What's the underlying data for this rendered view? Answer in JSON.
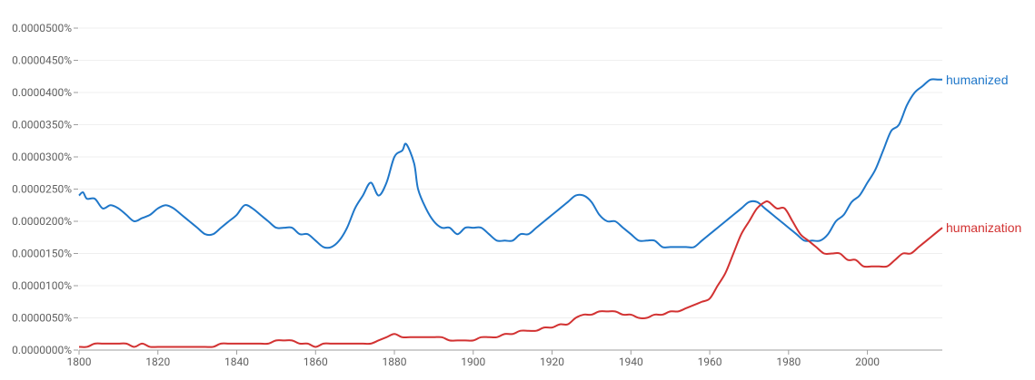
{
  "chart_data": {
    "type": "line",
    "title": "",
    "xlabel": "",
    "ylabel": "",
    "xlim": [
      1800,
      2019
    ],
    "ylim": [
      0,
      5e-06
    ],
    "x_ticks": [
      "1800",
      "1820",
      "1840",
      "1860",
      "1880",
      "1900",
      "1920",
      "1940",
      "1960",
      "1980",
      "2000"
    ],
    "y_ticks": [
      "0.0000000%",
      "0.0000050%",
      "0.0000100%",
      "0.0000150%",
      "0.0000200%",
      "0.0000250%",
      "0.0000300%",
      "0.0000350%",
      "0.0000400%",
      "0.0000450%",
      "0.0000500%"
    ],
    "grid": true,
    "legend": "inline-right",
    "series": [
      {
        "name": "humanized",
        "color": "#1f77c9",
        "points": [
          [
            1800,
            2.4e-06
          ],
          [
            1801,
            2.45e-06
          ],
          [
            1802,
            2.35e-06
          ],
          [
            1804,
            2.35e-06
          ],
          [
            1806,
            2.2e-06
          ],
          [
            1808,
            2.25e-06
          ],
          [
            1810,
            2.2e-06
          ],
          [
            1812,
            2.1e-06
          ],
          [
            1814,
            2e-06
          ],
          [
            1816,
            2.05e-06
          ],
          [
            1818,
            2.1e-06
          ],
          [
            1820,
            2.2e-06
          ],
          [
            1822,
            2.25e-06
          ],
          [
            1824,
            2.2e-06
          ],
          [
            1826,
            2.1e-06
          ],
          [
            1828,
            2e-06
          ],
          [
            1830,
            1.9e-06
          ],
          [
            1832,
            1.8e-06
          ],
          [
            1834,
            1.8e-06
          ],
          [
            1836,
            1.9e-06
          ],
          [
            1838,
            2e-06
          ],
          [
            1840,
            2.1e-06
          ],
          [
            1842,
            2.25e-06
          ],
          [
            1844,
            2.2e-06
          ],
          [
            1846,
            2.1e-06
          ],
          [
            1848,
            2e-06
          ],
          [
            1850,
            1.9e-06
          ],
          [
            1852,
            1.9e-06
          ],
          [
            1854,
            1.9e-06
          ],
          [
            1856,
            1.8e-06
          ],
          [
            1858,
            1.8e-06
          ],
          [
            1860,
            1.7e-06
          ],
          [
            1862,
            1.6e-06
          ],
          [
            1864,
            1.6e-06
          ],
          [
            1866,
            1.7e-06
          ],
          [
            1868,
            1.9e-06
          ],
          [
            1870,
            2.2e-06
          ],
          [
            1872,
            2.4e-06
          ],
          [
            1874,
            2.6e-06
          ],
          [
            1876,
            2.4e-06
          ],
          [
            1878,
            2.6e-06
          ],
          [
            1880,
            3e-06
          ],
          [
            1882,
            3.1e-06
          ],
          [
            1883,
            3.2e-06
          ],
          [
            1885,
            2.9e-06
          ],
          [
            1886,
            2.5e-06
          ],
          [
            1888,
            2.2e-06
          ],
          [
            1890,
            2e-06
          ],
          [
            1892,
            1.9e-06
          ],
          [
            1894,
            1.9e-06
          ],
          [
            1896,
            1.8e-06
          ],
          [
            1898,
            1.9e-06
          ],
          [
            1900,
            1.9e-06
          ],
          [
            1902,
            1.9e-06
          ],
          [
            1904,
            1.8e-06
          ],
          [
            1906,
            1.7e-06
          ],
          [
            1908,
            1.7e-06
          ],
          [
            1910,
            1.7e-06
          ],
          [
            1912,
            1.8e-06
          ],
          [
            1914,
            1.8e-06
          ],
          [
            1916,
            1.9e-06
          ],
          [
            1918,
            2e-06
          ],
          [
            1920,
            2.1e-06
          ],
          [
            1922,
            2.2e-06
          ],
          [
            1924,
            2.3e-06
          ],
          [
            1926,
            2.4e-06
          ],
          [
            1928,
            2.4e-06
          ],
          [
            1930,
            2.3e-06
          ],
          [
            1932,
            2.1e-06
          ],
          [
            1934,
            2e-06
          ],
          [
            1936,
            2e-06
          ],
          [
            1938,
            1.9e-06
          ],
          [
            1940,
            1.8e-06
          ],
          [
            1942,
            1.7e-06
          ],
          [
            1944,
            1.7e-06
          ],
          [
            1946,
            1.7e-06
          ],
          [
            1948,
            1.6e-06
          ],
          [
            1950,
            1.6e-06
          ],
          [
            1952,
            1.6e-06
          ],
          [
            1954,
            1.6e-06
          ],
          [
            1956,
            1.6e-06
          ],
          [
            1958,
            1.7e-06
          ],
          [
            1960,
            1.8e-06
          ],
          [
            1962,
            1.9e-06
          ],
          [
            1964,
            2e-06
          ],
          [
            1966,
            2.1e-06
          ],
          [
            1968,
            2.2e-06
          ],
          [
            1970,
            2.3e-06
          ],
          [
            1972,
            2.3e-06
          ],
          [
            1974,
            2.2e-06
          ],
          [
            1976,
            2.1e-06
          ],
          [
            1978,
            2e-06
          ],
          [
            1980,
            1.9e-06
          ],
          [
            1982,
            1.8e-06
          ],
          [
            1984,
            1.7e-06
          ],
          [
            1986,
            1.7e-06
          ],
          [
            1988,
            1.7e-06
          ],
          [
            1990,
            1.8e-06
          ],
          [
            1992,
            2e-06
          ],
          [
            1994,
            2.1e-06
          ],
          [
            1996,
            2.3e-06
          ],
          [
            1998,
            2.4e-06
          ],
          [
            2000,
            2.6e-06
          ],
          [
            2002,
            2.8e-06
          ],
          [
            2004,
            3.1e-06
          ],
          [
            2006,
            3.4e-06
          ],
          [
            2008,
            3.5e-06
          ],
          [
            2010,
            3.8e-06
          ],
          [
            2012,
            4e-06
          ],
          [
            2014,
            4.1e-06
          ],
          [
            2016,
            4.2e-06
          ],
          [
            2018,
            4.2e-06
          ],
          [
            2019,
            4.2e-06
          ]
        ]
      },
      {
        "name": "humanization",
        "color": "#d23232",
        "points": [
          [
            1800,
            5e-08
          ],
          [
            1802,
            5e-08
          ],
          [
            1804,
            1e-07
          ],
          [
            1806,
            1e-07
          ],
          [
            1808,
            1e-07
          ],
          [
            1810,
            1e-07
          ],
          [
            1812,
            1e-07
          ],
          [
            1814,
            5e-08
          ],
          [
            1816,
            1e-07
          ],
          [
            1818,
            5e-08
          ],
          [
            1820,
            5e-08
          ],
          [
            1822,
            5e-08
          ],
          [
            1824,
            5e-08
          ],
          [
            1826,
            5e-08
          ],
          [
            1828,
            5e-08
          ],
          [
            1830,
            5e-08
          ],
          [
            1832,
            5e-08
          ],
          [
            1834,
            5e-08
          ],
          [
            1836,
            1e-07
          ],
          [
            1838,
            1e-07
          ],
          [
            1840,
            1e-07
          ],
          [
            1842,
            1e-07
          ],
          [
            1844,
            1e-07
          ],
          [
            1846,
            1e-07
          ],
          [
            1848,
            1e-07
          ],
          [
            1850,
            1.5e-07
          ],
          [
            1852,
            1.5e-07
          ],
          [
            1854,
            1.5e-07
          ],
          [
            1856,
            1e-07
          ],
          [
            1858,
            1e-07
          ],
          [
            1860,
            5e-08
          ],
          [
            1862,
            1e-07
          ],
          [
            1864,
            1e-07
          ],
          [
            1866,
            1e-07
          ],
          [
            1868,
            1e-07
          ],
          [
            1870,
            1e-07
          ],
          [
            1872,
            1e-07
          ],
          [
            1874,
            1e-07
          ],
          [
            1876,
            1.5e-07
          ],
          [
            1878,
            2e-07
          ],
          [
            1880,
            2.5e-07
          ],
          [
            1882,
            2e-07
          ],
          [
            1884,
            2e-07
          ],
          [
            1886,
            2e-07
          ],
          [
            1888,
            2e-07
          ],
          [
            1890,
            2e-07
          ],
          [
            1892,
            2e-07
          ],
          [
            1894,
            1.5e-07
          ],
          [
            1896,
            1.5e-07
          ],
          [
            1898,
            1.5e-07
          ],
          [
            1900,
            1.5e-07
          ],
          [
            1902,
            2e-07
          ],
          [
            1904,
            2e-07
          ],
          [
            1906,
            2e-07
          ],
          [
            1908,
            2.5e-07
          ],
          [
            1910,
            2.5e-07
          ],
          [
            1912,
            3e-07
          ],
          [
            1914,
            3e-07
          ],
          [
            1916,
            3e-07
          ],
          [
            1918,
            3.5e-07
          ],
          [
            1920,
            3.5e-07
          ],
          [
            1922,
            4e-07
          ],
          [
            1924,
            4e-07
          ],
          [
            1926,
            5e-07
          ],
          [
            1928,
            5.5e-07
          ],
          [
            1930,
            5.5e-07
          ],
          [
            1932,
            6e-07
          ],
          [
            1934,
            6e-07
          ],
          [
            1936,
            6e-07
          ],
          [
            1938,
            5.5e-07
          ],
          [
            1940,
            5.5e-07
          ],
          [
            1942,
            5e-07
          ],
          [
            1944,
            5e-07
          ],
          [
            1946,
            5.5e-07
          ],
          [
            1948,
            5.5e-07
          ],
          [
            1950,
            6e-07
          ],
          [
            1952,
            6e-07
          ],
          [
            1954,
            6.5e-07
          ],
          [
            1956,
            7e-07
          ],
          [
            1958,
            7.5e-07
          ],
          [
            1960,
            8e-07
          ],
          [
            1962,
            1e-06
          ],
          [
            1964,
            1.2e-06
          ],
          [
            1966,
            1.5e-06
          ],
          [
            1968,
            1.8e-06
          ],
          [
            1970,
            2e-06
          ],
          [
            1972,
            2.2e-06
          ],
          [
            1974,
            2.3e-06
          ],
          [
            1975,
            2.3e-06
          ],
          [
            1977,
            2.2e-06
          ],
          [
            1979,
            2.2e-06
          ],
          [
            1981,
            2e-06
          ],
          [
            1983,
            1.8e-06
          ],
          [
            1985,
            1.7e-06
          ],
          [
            1987,
            1.6e-06
          ],
          [
            1989,
            1.5e-06
          ],
          [
            1991,
            1.5e-06
          ],
          [
            1993,
            1.5e-06
          ],
          [
            1995,
            1.4e-06
          ],
          [
            1997,
            1.4e-06
          ],
          [
            1999,
            1.3e-06
          ],
          [
            2001,
            1.3e-06
          ],
          [
            2003,
            1.3e-06
          ],
          [
            2005,
            1.3e-06
          ],
          [
            2007,
            1.4e-06
          ],
          [
            2009,
            1.5e-06
          ],
          [
            2011,
            1.5e-06
          ],
          [
            2013,
            1.6e-06
          ],
          [
            2015,
            1.7e-06
          ],
          [
            2017,
            1.8e-06
          ],
          [
            2019,
            1.9e-06
          ]
        ]
      }
    ]
  }
}
